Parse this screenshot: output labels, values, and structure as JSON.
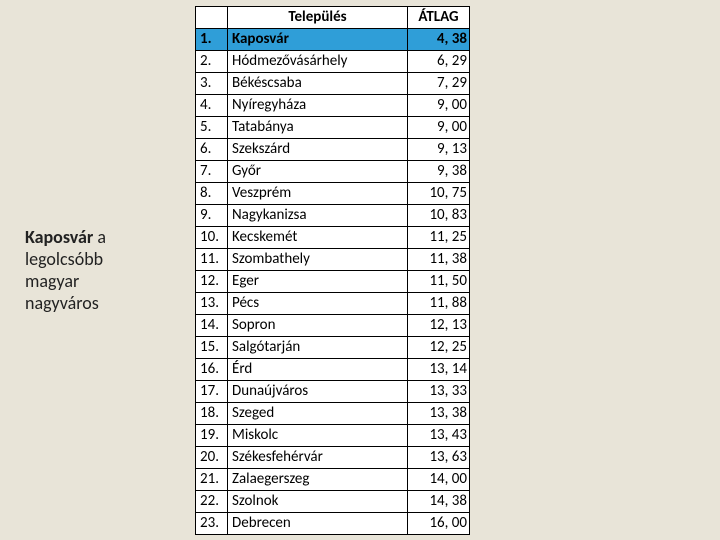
{
  "sidebar": {
    "strong": "Kaposvár ",
    "rest_a": "a",
    "line2": "legolcsóbb",
    "line3": "magyar",
    "line4": "nagyváros"
  },
  "table": {
    "headers": {
      "rank": "",
      "city": "Település",
      "avg": "ÁTLAG"
    },
    "highlight_color": "#2f9ed8",
    "rows": [
      {
        "rank": "1.",
        "city": "Kaposvár",
        "avg": "4, 38",
        "highlight": true
      },
      {
        "rank": "2.",
        "city": "Hódmezővásárhely",
        "avg": "6, 29",
        "highlight": false
      },
      {
        "rank": "3.",
        "city": "Békéscsaba",
        "avg": "7, 29",
        "highlight": false
      },
      {
        "rank": "4.",
        "city": "Nyíregyháza",
        "avg": "9, 00",
        "highlight": false
      },
      {
        "rank": "5.",
        "city": "Tatabánya",
        "avg": "9, 00",
        "highlight": false
      },
      {
        "rank": "6.",
        "city": "Szekszárd",
        "avg": "9, 13",
        "highlight": false
      },
      {
        "rank": "7.",
        "city": "Győr",
        "avg": "9, 38",
        "highlight": false
      },
      {
        "rank": "8.",
        "city": "Veszprém",
        "avg": "10, 75",
        "highlight": false
      },
      {
        "rank": "9.",
        "city": "Nagykanizsa",
        "avg": "10, 83",
        "highlight": false
      },
      {
        "rank": "10.",
        "city": "Kecskemét",
        "avg": "11, 25",
        "highlight": false
      },
      {
        "rank": "11.",
        "city": "Szombathely",
        "avg": "11, 38",
        "highlight": false
      },
      {
        "rank": "12.",
        "city": "Eger",
        "avg": "11, 50",
        "highlight": false
      },
      {
        "rank": "13.",
        "city": "Pécs",
        "avg": "11, 88",
        "highlight": false
      },
      {
        "rank": "14.",
        "city": "Sopron",
        "avg": "12, 13",
        "highlight": false
      },
      {
        "rank": "15.",
        "city": "Salgótarján",
        "avg": "12, 25",
        "highlight": false
      },
      {
        "rank": "16.",
        "city": "Érd",
        "avg": "13, 14",
        "highlight": false
      },
      {
        "rank": "17.",
        "city": "Dunaújváros",
        "avg": "13, 33",
        "highlight": false
      },
      {
        "rank": "18.",
        "city": "Szeged",
        "avg": "13, 38",
        "highlight": false
      },
      {
        "rank": "19.",
        "city": "Miskolc",
        "avg": "13, 43",
        "highlight": false
      },
      {
        "rank": "20.",
        "city": "Székesfehérvár",
        "avg": "13, 63",
        "highlight": false
      },
      {
        "rank": "21.",
        "city": "Zalaegerszeg",
        "avg": "14, 00",
        "highlight": false
      },
      {
        "rank": "22.",
        "city": "Szolnok",
        "avg": "14, 38",
        "highlight": false
      },
      {
        "rank": "23.",
        "city": "Debrecen",
        "avg": "16, 00",
        "highlight": false
      }
    ]
  }
}
